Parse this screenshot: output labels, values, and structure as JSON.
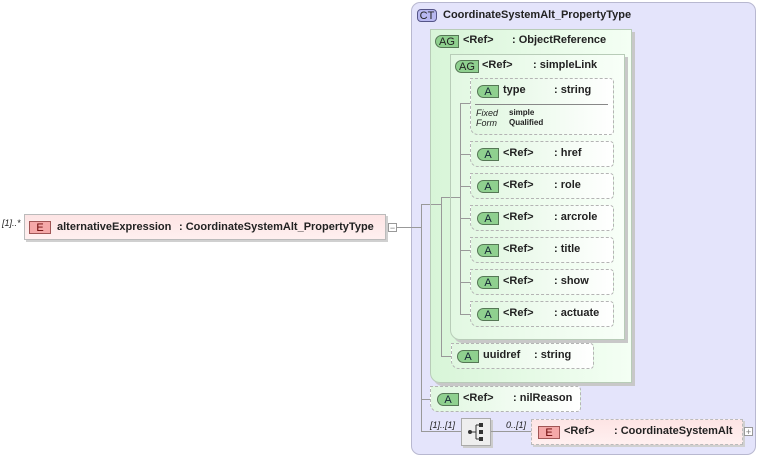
{
  "root": {
    "cardinality": "[1]..*",
    "badge": "E",
    "name": "alternativeExpression",
    "type": ": CoordinateSystemAlt_PropertyType"
  },
  "complex_type": {
    "badge": "CT",
    "name": "CoordinateSystemAlt_PropertyType"
  },
  "object_reference": {
    "badge": "AG",
    "ref": "<Ref>",
    "type": ": ObjectReference"
  },
  "simple_link": {
    "badge": "AG",
    "ref": "<Ref>",
    "type": ": simpleLink"
  },
  "type_attr": {
    "badge": "A",
    "name": "type",
    "type": ": string",
    "fixed_label": "Fixed",
    "fixed_value": "simple",
    "form_label": "Form",
    "form_value": "Qualified"
  },
  "attributes": [
    {
      "badge": "A",
      "ref": "<Ref>",
      "type": ": href"
    },
    {
      "badge": "A",
      "ref": "<Ref>",
      "type": ": role"
    },
    {
      "badge": "A",
      "ref": "<Ref>",
      "type": ": arcrole"
    },
    {
      "badge": "A",
      "ref": "<Ref>",
      "type": ": title"
    },
    {
      "badge": "A",
      "ref": "<Ref>",
      "type": ": show"
    },
    {
      "badge": "A",
      "ref": "<Ref>",
      "type": ": actuate"
    }
  ],
  "uuidref": {
    "badge": "A",
    "name": "uuidref",
    "type": ": string"
  },
  "nil_reason": {
    "badge": "A",
    "ref": "<Ref>",
    "type": ": nilReason"
  },
  "sequence": {
    "cardinality": "[1]..[1]"
  },
  "child_element": {
    "cardinality": "0..[1]",
    "badge": "E",
    "ref": "<Ref>",
    "type": ": CoordinateSystemAlt"
  },
  "icons": {
    "collapse": "minus-icon",
    "expand": "plus-icon",
    "sequence": "sequence-icon"
  }
}
